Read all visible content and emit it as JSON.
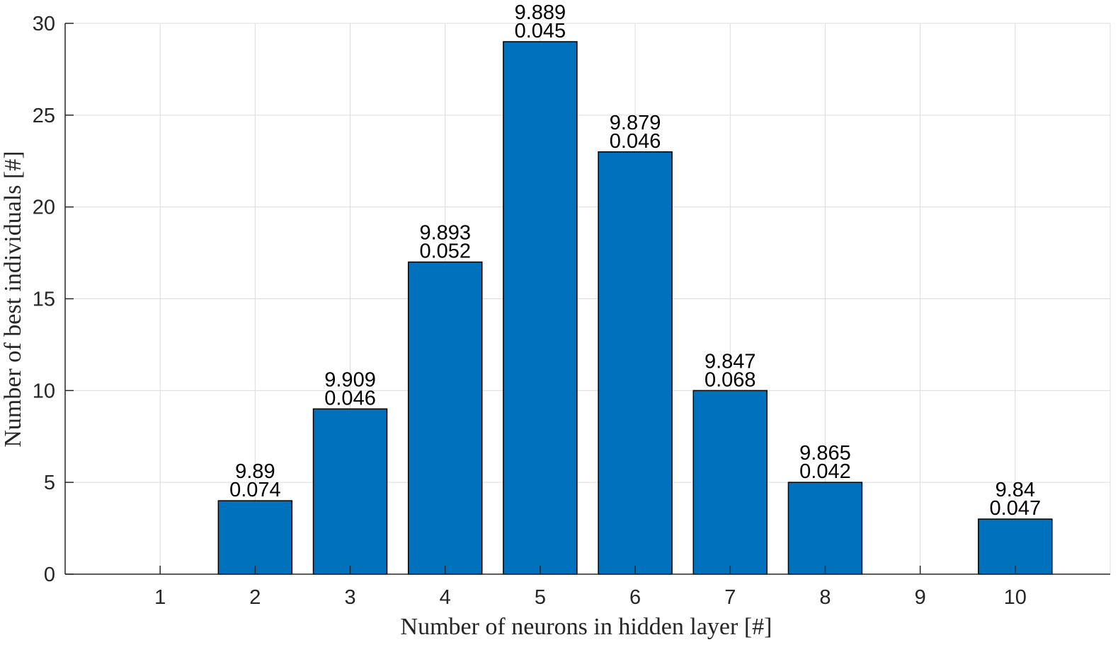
{
  "chart_data": {
    "type": "bar",
    "categories": [
      "1",
      "2",
      "3",
      "4",
      "5",
      "6",
      "7",
      "8",
      "9",
      "10"
    ],
    "x": [
      1,
      2,
      3,
      4,
      5,
      6,
      7,
      8,
      9,
      10
    ],
    "values": [
      0,
      4,
      9,
      17,
      29,
      23,
      10,
      5,
      0,
      3
    ],
    "bar_labels": [
      null,
      [
        "9.89",
        "0.074"
      ],
      [
        "9.909",
        "0.046"
      ],
      [
        "9.893",
        "0.052"
      ],
      [
        "9.889",
        "0.045"
      ],
      [
        "9.879",
        "0.046"
      ],
      [
        "9.847",
        "0.068"
      ],
      [
        "9.865",
        "0.042"
      ],
      null,
      [
        "9.84",
        "0.047"
      ]
    ],
    "title": "",
    "xlabel": "Number of neurons in hidden layer [#]",
    "ylabel": "Number of best individuals [#]",
    "xlim": [
      0,
      11
    ],
    "ylim": [
      0,
      30
    ],
    "yticks": [
      0,
      5,
      10,
      15,
      20,
      25,
      30
    ],
    "xticks": [
      1,
      2,
      3,
      4,
      5,
      6,
      7,
      8,
      9,
      10
    ],
    "grid": true,
    "bar_color": "#0072BD"
  }
}
